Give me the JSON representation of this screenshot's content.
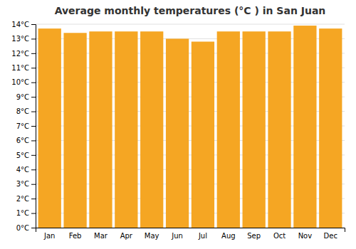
{
  "chart_data": {
    "type": "bar",
    "title": "Average monthly temperatures (°C ) in San Juan",
    "categories": [
      "Jan",
      "Feb",
      "Mar",
      "Apr",
      "May",
      "Jun",
      "Jul",
      "Aug",
      "Sep",
      "Oct",
      "Nov",
      "Dec"
    ],
    "values": [
      13.7,
      13.4,
      13.5,
      13.5,
      13.5,
      13.0,
      12.8,
      13.5,
      13.5,
      13.5,
      13.9,
      13.7
    ],
    "color": "#F5A623",
    "ylim": [
      0,
      14
    ],
    "yticks": [
      {
        "value": 0,
        "label": "0°C"
      },
      {
        "value": 1,
        "label": "1°C"
      },
      {
        "value": 2,
        "label": "2°C"
      },
      {
        "value": 3,
        "label": "3°C"
      },
      {
        "value": 4,
        "label": "4°C"
      },
      {
        "value": 5,
        "label": "5°C"
      },
      {
        "value": 6,
        "label": "6°C"
      },
      {
        "value": 7,
        "label": "7°C"
      },
      {
        "value": 8,
        "label": "8°C"
      },
      {
        "value": 9,
        "label": "9°C"
      },
      {
        "value": 10,
        "label": "10°C"
      },
      {
        "value": 11,
        "label": "11°C"
      },
      {
        "value": 12,
        "label": "12°C"
      },
      {
        "value": 13,
        "label": "13°C"
      },
      {
        "value": 14,
        "label": "14°C"
      }
    ],
    "grid": true
  }
}
